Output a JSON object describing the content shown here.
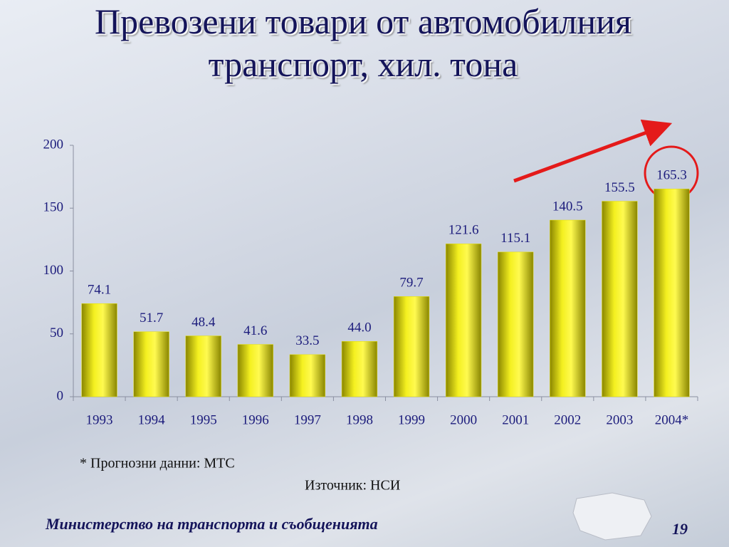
{
  "chart_data": {
    "type": "bar",
    "title": "Превозени товари от автомобилния транспорт, хил. тона",
    "categories": [
      "1993",
      "1994",
      "1995",
      "1996",
      "1997",
      "1998",
      "1999",
      "2000",
      "2001",
      "2002",
      "2003",
      "2004*"
    ],
    "values": [
      74.1,
      51.7,
      48.4,
      41.6,
      33.5,
      44.0,
      79.7,
      121.6,
      115.1,
      140.5,
      155.5,
      165.3
    ],
    "value_labels": [
      "74.1",
      "51.7",
      "48.4",
      "41.6",
      "33.5",
      "44.0",
      "79.7",
      "121.6",
      "115.1",
      "140.5",
      "155.5",
      "165.3"
    ],
    "color": "#e5e000",
    "ylim": [
      0,
      200
    ],
    "yticks": [
      0,
      50,
      100,
      150,
      200
    ],
    "grid": false
  },
  "footnote": "* Прогнозни данни: МТС",
  "source": "Източник: НСИ",
  "footer": {
    "organization": "Министерство на транспорта и съобщенията",
    "page": 19
  }
}
